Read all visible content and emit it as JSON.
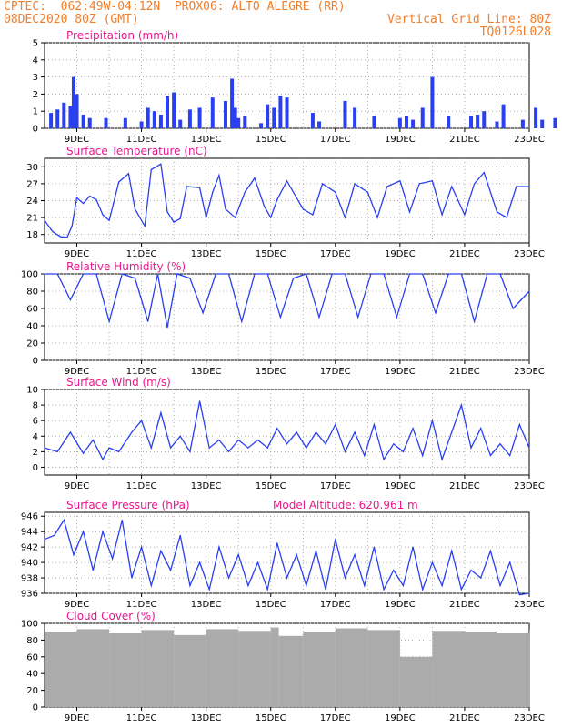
{
  "header": {
    "line1_left": "CPTEC:  062:49W-04:12N  PROX06: ALTO ALEGRE (RR)",
    "line2_left": "08DEC2020 80Z (GMT)",
    "line2_right": "Vertical Grid Line: 80Z",
    "line3_right": "TQ0126L028"
  },
  "x_axis": {
    "labels": [
      "9DEC",
      "11DEC",
      "13DEC",
      "15DEC",
      "17DEC",
      "19DEC",
      "21DEC",
      "23DEC"
    ],
    "range_days": [
      0,
      15
    ]
  },
  "colors": {
    "line": "#2a3ff0",
    "bar": "#2a3ff0",
    "cloud": "#ababab",
    "title": "#e8188c",
    "header": "#f07f2c"
  },
  "chart_data": [
    {
      "id": "precip",
      "type": "bar",
      "title": "Precipitation (mm/h)",
      "ylim": [
        0,
        5
      ],
      "yticks": [
        0,
        1,
        2,
        3,
        4,
        5
      ],
      "x": [
        0.2,
        0.4,
        0.6,
        0.8,
        0.9,
        1.0,
        1.2,
        1.4,
        1.9,
        2.5,
        3.0,
        3.2,
        3.4,
        3.6,
        3.8,
        4.0,
        4.2,
        4.5,
        4.8,
        5.2,
        5.6,
        5.8,
        5.9,
        6.0,
        6.2,
        6.7,
        6.9,
        7.1,
        7.3,
        7.5,
        8.3,
        8.5,
        9.3,
        9.6,
        10.2,
        11.0,
        11.2,
        11.4,
        11.7,
        12.0,
        12.5,
        13.2,
        13.4,
        13.6,
        14.0,
        14.2,
        14.8,
        15.2,
        15.4,
        15.8,
        16.1,
        16.4,
        16.7,
        16.9,
        17.3,
        17.7,
        18.0,
        18.3,
        18.7,
        19.0,
        19.3,
        19.7,
        20.5,
        20.9,
        21.4,
        21.9,
        22.3,
        22.6
      ],
      "values": [
        0.9,
        1.1,
        1.5,
        1.3,
        3.0,
        2.0,
        0.8,
        0.6,
        0.6,
        0.6,
        0.4,
        1.2,
        1.0,
        0.8,
        1.9,
        2.1,
        0.5,
        1.1,
        1.2,
        1.8,
        1.6,
        2.9,
        1.2,
        0.6,
        0.7,
        0.3,
        1.4,
        1.2,
        1.9,
        1.8,
        0.9,
        0.4,
        1.6,
        1.2,
        0.7,
        0.6,
        0.7,
        0.5,
        1.2,
        3.0,
        0.7,
        0.7,
        0.8,
        1.0,
        0.4,
        1.4,
        0.5,
        1.2,
        0.5,
        0.6,
        0.6,
        1.1,
        2.0,
        2.4,
        1.4,
        0.8,
        0.6,
        2.9,
        2.2,
        1.6,
        0.8,
        1.1,
        0.8,
        1.2,
        0.6,
        2.0,
        1.3,
        1.9
      ]
    },
    {
      "id": "temp",
      "type": "line",
      "title": "Surface Temperature (nC)",
      "ylim": [
        16.5,
        31.5
      ],
      "yticks": [
        18,
        21,
        24,
        27,
        30
      ],
      "x": [
        0,
        0.25,
        0.5,
        0.7,
        0.85,
        1.0,
        1.2,
        1.4,
        1.6,
        1.8,
        2.0,
        2.3,
        2.6,
        2.8,
        3.1,
        3.3,
        3.6,
        3.8,
        4.0,
        4.2,
        4.4,
        4.8,
        5.0,
        5.2,
        5.4,
        5.6,
        5.9,
        6.2,
        6.5,
        6.8,
        7.0,
        7.2,
        7.5,
        8.0,
        8.3,
        8.6,
        9.0,
        9.3,
        9.6,
        10.0,
        10.3,
        10.6,
        11.0,
        11.3,
        11.6,
        12.0,
        12.3,
        12.6,
        13.0,
        13.3,
        13.6,
        14.0,
        14.3,
        14.6,
        15.0
      ],
      "values": [
        20.5,
        18.5,
        17.6,
        17.5,
        19.5,
        24.5,
        23.5,
        24.8,
        24.2,
        21.5,
        20.5,
        27.3,
        28.8,
        22.5,
        19.5,
        29.5,
        30.5,
        22.0,
        20.2,
        20.8,
        26.5,
        26.3,
        21.0,
        25.5,
        28.5,
        22.5,
        21.0,
        25.5,
        28.0,
        23.0,
        21.0,
        24.2,
        27.5,
        22.5,
        21.5,
        27.0,
        25.5,
        21.0,
        27.0,
        25.5,
        21.0,
        26.5,
        27.5,
        22.0,
        27.0,
        27.5,
        21.5,
        26.5,
        21.5,
        27.0,
        29.0,
        22.0,
        21.0,
        26.5,
        26.5
      ]
    },
    {
      "id": "rh",
      "type": "line",
      "title": "Relative Humidity (%)",
      "ylim": [
        0,
        100
      ],
      "yticks": [
        0,
        20,
        40,
        60,
        80,
        100
      ],
      "x": [
        0,
        0.4,
        0.8,
        1.2,
        1.6,
        2.0,
        2.4,
        2.8,
        3.2,
        3.5,
        3.8,
        4.1,
        4.5,
        4.9,
        5.3,
        5.7,
        6.1,
        6.5,
        6.9,
        7.3,
        7.7,
        8.1,
        8.5,
        8.9,
        9.3,
        9.7,
        10.1,
        10.5,
        10.9,
        11.3,
        11.7,
        12.1,
        12.5,
        12.9,
        13.3,
        13.7,
        14.1,
        14.5,
        15.0
      ],
      "values": [
        100,
        100,
        70,
        100,
        100,
        45,
        100,
        95,
        45,
        100,
        38,
        100,
        95,
        55,
        100,
        100,
        45,
        100,
        100,
        50,
        95,
        100,
        50,
        100,
        100,
        50,
        100,
        100,
        50,
        100,
        100,
        55,
        100,
        100,
        45,
        100,
        100,
        60,
        80
      ]
    },
    {
      "id": "wind",
      "type": "line",
      "title": "Surface Wind (m/s)",
      "ylim": [
        -1,
        10
      ],
      "yticks": [
        0,
        2,
        4,
        6,
        8,
        10
      ],
      "x": [
        0,
        0.4,
        0.8,
        1.2,
        1.5,
        1.8,
        2.0,
        2.3,
        2.7,
        3.0,
        3.3,
        3.6,
        3.9,
        4.2,
        4.5,
        4.8,
        5.1,
        5.4,
        5.7,
        6.0,
        6.3,
        6.6,
        6.9,
        7.2,
        7.5,
        7.8,
        8.1,
        8.4,
        8.7,
        9.0,
        9.3,
        9.6,
        9.9,
        10.2,
        10.5,
        10.8,
        11.1,
        11.4,
        11.7,
        12.0,
        12.3,
        12.6,
        12.9,
        13.2,
        13.5,
        13.8,
        14.1,
        14.4,
        14.7,
        15.0
      ],
      "values": [
        2.5,
        2.0,
        4.5,
        1.8,
        3.5,
        1.0,
        2.5,
        2.0,
        4.5,
        6.0,
        2.5,
        7.0,
        2.5,
        4.0,
        2.0,
        8.5,
        2.5,
        3.5,
        2.0,
        3.5,
        2.5,
        3.5,
        2.5,
        5.0,
        3.0,
        4.5,
        2.5,
        4.5,
        3.0,
        5.5,
        2.0,
        4.5,
        1.5,
        5.5,
        1.0,
        3.0,
        2.0,
        5.0,
        1.5,
        6.0,
        1.0,
        4.5,
        8.0,
        2.5,
        5.0,
        1.5,
        3.0,
        1.5,
        5.5,
        2.5
      ]
    },
    {
      "id": "press",
      "type": "line",
      "title": "Surface Pressure (hPa)",
      "extra_label": "Model Altitude: 620.961 m",
      "ylim": [
        936,
        946.5
      ],
      "yticks": [
        936,
        938,
        940,
        942,
        944,
        946
      ],
      "x": [
        0,
        0.3,
        0.6,
        0.9,
        1.2,
        1.5,
        1.8,
        2.1,
        2.4,
        2.7,
        3.0,
        3.3,
        3.6,
        3.9,
        4.2,
        4.5,
        4.8,
        5.1,
        5.4,
        5.7,
        6.0,
        6.3,
        6.6,
        6.9,
        7.2,
        7.5,
        7.8,
        8.1,
        8.4,
        8.7,
        9.0,
        9.3,
        9.6,
        9.9,
        10.2,
        10.5,
        10.8,
        11.1,
        11.4,
        11.7,
        12.0,
        12.3,
        12.6,
        12.9,
        13.2,
        13.5,
        13.8,
        14.1,
        14.4,
        14.7,
        15.0
      ],
      "values": [
        943,
        943.5,
        945.5,
        941,
        944,
        939,
        944,
        940.5,
        945.5,
        938,
        942,
        937,
        941.5,
        939,
        943.5,
        937,
        940,
        936.5,
        942,
        938,
        941,
        937,
        940,
        936.5,
        942.5,
        938,
        941,
        937,
        941.5,
        936.5,
        943,
        938,
        941,
        937,
        942,
        936.5,
        939,
        937,
        942,
        936.5,
        940,
        937,
        941.5,
        936.5,
        939,
        938,
        941.5,
        937,
        940,
        935.8,
        936
      ]
    },
    {
      "id": "cloud",
      "type": "bar",
      "title": "Cloud Cover (%)",
      "ylim": [
        0,
        100
      ],
      "yticks": [
        0,
        20,
        40,
        60,
        80,
        100
      ],
      "x": [
        0,
        1,
        2,
        3,
        4,
        5,
        6,
        7,
        7.25,
        8,
        9,
        10,
        11,
        12,
        13,
        14,
        15
      ],
      "values": [
        90,
        93,
        88,
        92,
        86,
        93,
        91,
        95,
        85,
        90,
        94,
        92,
        60,
        91,
        90,
        88,
        92
      ]
    }
  ]
}
